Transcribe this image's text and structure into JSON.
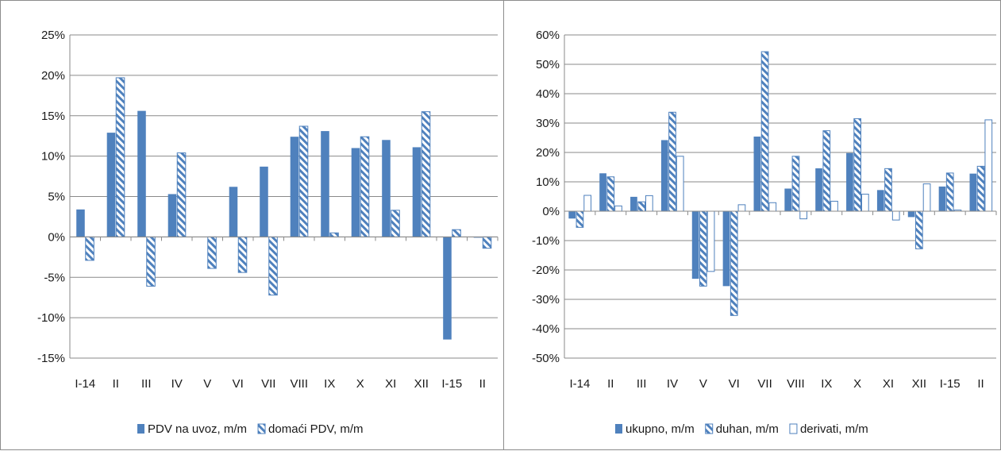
{
  "chart_data": [
    {
      "type": "bar",
      "categories": [
        "I-14",
        "II",
        "III",
        "IV",
        "V",
        "VI",
        "VII",
        "VIII",
        "IX",
        "X",
        "XI",
        "XII",
        "I-15",
        "II"
      ],
      "ylim": [
        -0.15,
        0.25
      ],
      "yticks": [
        {
          "value": 0.25,
          "label": "25%"
        },
        {
          "value": 0.2,
          "label": "20%"
        },
        {
          "value": 0.15,
          "label": "15%"
        },
        {
          "value": 0.1,
          "label": "10%"
        },
        {
          "value": 0.05,
          "label": "5%"
        },
        {
          "value": 0.0,
          "label": "0%"
        },
        {
          "value": -0.05,
          "label": "-5%"
        },
        {
          "value": -0.1,
          "label": "-10%"
        },
        {
          "value": -0.15,
          "label": "-15%"
        }
      ],
      "grid": true,
      "legend_position": "bottom",
      "series": [
        {
          "name": "PDV na uvoz, m/m",
          "style": "solid",
          "color": "#4f81bd",
          "values": [
            0.034,
            0.129,
            0.156,
            0.053,
            0.0,
            0.062,
            0.087,
            0.124,
            0.131,
            0.11,
            0.12,
            0.111,
            -0.127,
            -0.001
          ]
        },
        {
          "name": "domaći PDV, m/m",
          "style": "hatched",
          "color": "#4f81bd",
          "values": [
            -0.029,
            0.197,
            -0.061,
            0.104,
            -0.039,
            -0.044,
            -0.072,
            0.137,
            0.005,
            0.124,
            0.033,
            0.155,
            0.009,
            -0.014
          ]
        }
      ]
    },
    {
      "type": "bar",
      "categories": [
        "I-14",
        "II",
        "III",
        "IV",
        "V",
        "VI",
        "VII",
        "VIII",
        "IX",
        "X",
        "XI",
        "XII",
        "I-15",
        "II"
      ],
      "ylim": [
        -0.5,
        0.6
      ],
      "yticks": [
        {
          "value": 0.6,
          "label": "60%"
        },
        {
          "value": 0.5,
          "label": "50%"
        },
        {
          "value": 0.4,
          "label": "40%"
        },
        {
          "value": 0.3,
          "label": "30%"
        },
        {
          "value": 0.2,
          "label": "20%"
        },
        {
          "value": 0.1,
          "label": "10%"
        },
        {
          "value": 0.0,
          "label": "0%"
        },
        {
          "value": -0.1,
          "label": "-10%"
        },
        {
          "value": -0.2,
          "label": "-20%"
        },
        {
          "value": -0.3,
          "label": "-30%"
        },
        {
          "value": -0.4,
          "label": "-40%"
        },
        {
          "value": -0.5,
          "label": "-50%"
        }
      ],
      "grid": true,
      "legend_position": "bottom",
      "series": [
        {
          "name": "ukupno, m/m",
          "style": "solid",
          "color": "#4f81bd",
          "values": [
            -0.025,
            0.129,
            0.049,
            0.242,
            -0.23,
            -0.255,
            0.254,
            0.077,
            0.146,
            0.198,
            0.072,
            -0.02,
            0.084,
            0.128
          ]
        },
        {
          "name": "duhan, m/m",
          "style": "hatched",
          "color": "#4f81bd",
          "values": [
            -0.055,
            0.117,
            0.032,
            0.337,
            -0.255,
            -0.355,
            0.543,
            0.187,
            0.274,
            0.315,
            0.145,
            -0.128,
            0.13,
            0.153
          ]
        },
        {
          "name": "derivati, m/m",
          "style": "outline",
          "color": "#4f81bd",
          "values": [
            0.054,
            0.018,
            0.053,
            0.187,
            -0.205,
            0.022,
            0.029,
            -0.026,
            0.034,
            0.058,
            -0.03,
            0.093,
            0.004,
            0.311
          ]
        }
      ]
    }
  ]
}
